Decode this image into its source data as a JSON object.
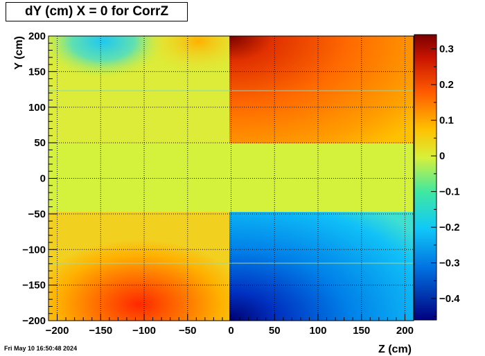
{
  "chart_data": {
    "type": "heatmap",
    "title": "dY (cm) X = 0 for CorrZ",
    "xlabel": "Z (cm)",
    "ylabel": "Y (cm)",
    "xlim": [
      -210,
      210
    ],
    "ylim": [
      -200,
      200
    ],
    "zlim": [
      -0.46,
      0.34
    ],
    "x_ticks": [
      -200,
      -150,
      -100,
      -50,
      0,
      50,
      100,
      150,
      200
    ],
    "y_ticks": [
      -200,
      -150,
      -100,
      -50,
      0,
      50,
      100,
      150,
      200
    ],
    "x_tick_labels": [
      "−200",
      "−150",
      "−100",
      "−50",
      "0",
      "50",
      "100",
      "150",
      "200"
    ],
    "y_tick_labels": [
      "−200",
      "−150",
      "−100",
      "−50",
      "0",
      "50",
      "100",
      "150",
      "200"
    ],
    "colorbar_ticks": [
      0.3,
      0.2,
      0.1,
      0,
      -0.1,
      -0.2,
      -0.3,
      -0.4
    ],
    "colorbar_tick_labels": [
      "0.3",
      "0.2",
      "0.1",
      "0",
      "−0.1",
      "−0.2",
      "−0.3",
      "−0.4"
    ],
    "grid": true,
    "colormap": "rainbow",
    "regions": [
      {
        "z": [
          0,
          210
        ],
        "y": [
          50,
          200
        ],
        "value_range": [
          0.13,
          0.33
        ]
      },
      {
        "z": [
          0,
          210
        ],
        "y": [
          -200,
          -50
        ],
        "value_range": [
          -0.46,
          -0.12
        ]
      },
      {
        "z": [
          -210,
          0
        ],
        "y": [
          50,
          200
        ],
        "value_range": [
          -0.15,
          0.1
        ]
      },
      {
        "z": [
          -210,
          0
        ],
        "y": [
          -200,
          -50
        ],
        "value_range": [
          0.03,
          0.26
        ]
      },
      {
        "z": [
          -210,
          210
        ],
        "y": [
          -50,
          50
        ],
        "value_range": [
          0.0,
          0.02
        ]
      }
    ]
  },
  "timestamp": "Fri May 10 16:50:48 2024"
}
